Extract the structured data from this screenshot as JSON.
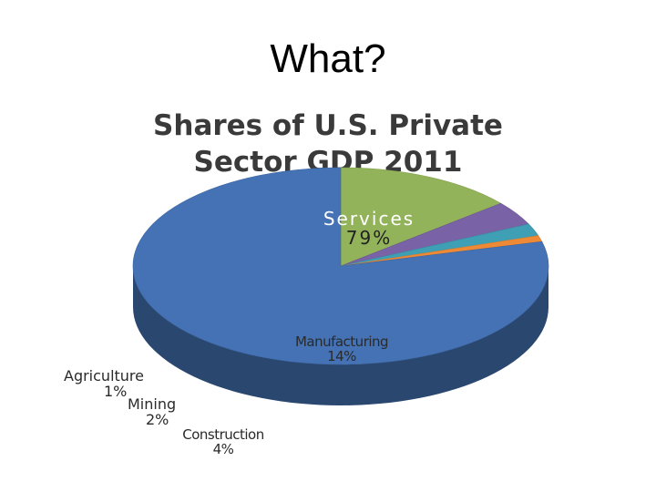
{
  "slide": {
    "title": "What?"
  },
  "chart_data": {
    "type": "pie",
    "title": "Shares of U.S. Private Sector GDP 2011",
    "title_lines": [
      "Shares of U.S. Private",
      "Sector GDP 2011"
    ],
    "categories": [
      "Services",
      "Manufacturing",
      "Construction",
      "Mining",
      "Agriculture"
    ],
    "values": [
      79,
      14,
      4,
      2,
      1
    ],
    "labels": [
      "79%",
      "14%",
      "4%",
      "2%",
      "1%"
    ],
    "colors": {
      "Services": "#4472b4",
      "Manufacturing": "#93b35a",
      "Construction": "#7962a5",
      "Mining": "#3e9fb5",
      "Agriculture": "#ee8a35"
    },
    "style": "3d",
    "legend": "none"
  }
}
